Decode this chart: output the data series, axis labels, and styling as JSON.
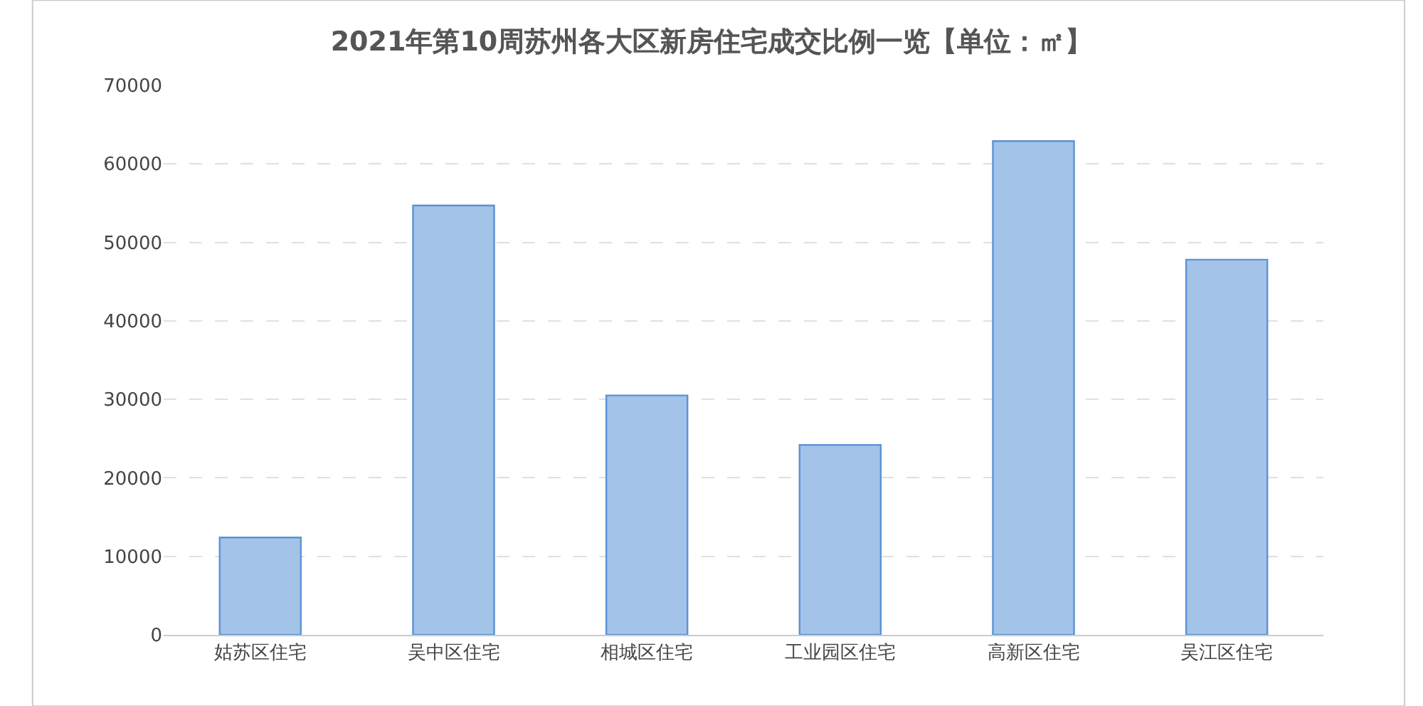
{
  "chart_data": {
    "type": "bar",
    "title": "2021年第10周苏州各大区新房住宅成交比例一览【单位：㎡】",
    "categories": [
      "姑苏区住宅",
      "吴中区住宅",
      "相城区住宅",
      "工业园区住宅",
      "高新区住宅",
      "吴江区住宅"
    ],
    "values": [
      12400,
      54700,
      30500,
      24200,
      62900,
      47800
    ],
    "color": "#a3c3e8",
    "ylim": [
      0,
      70000
    ],
    "yticks": [
      0,
      10000,
      20000,
      30000,
      40000,
      50000,
      60000,
      70000
    ],
    "grid": "y"
  }
}
